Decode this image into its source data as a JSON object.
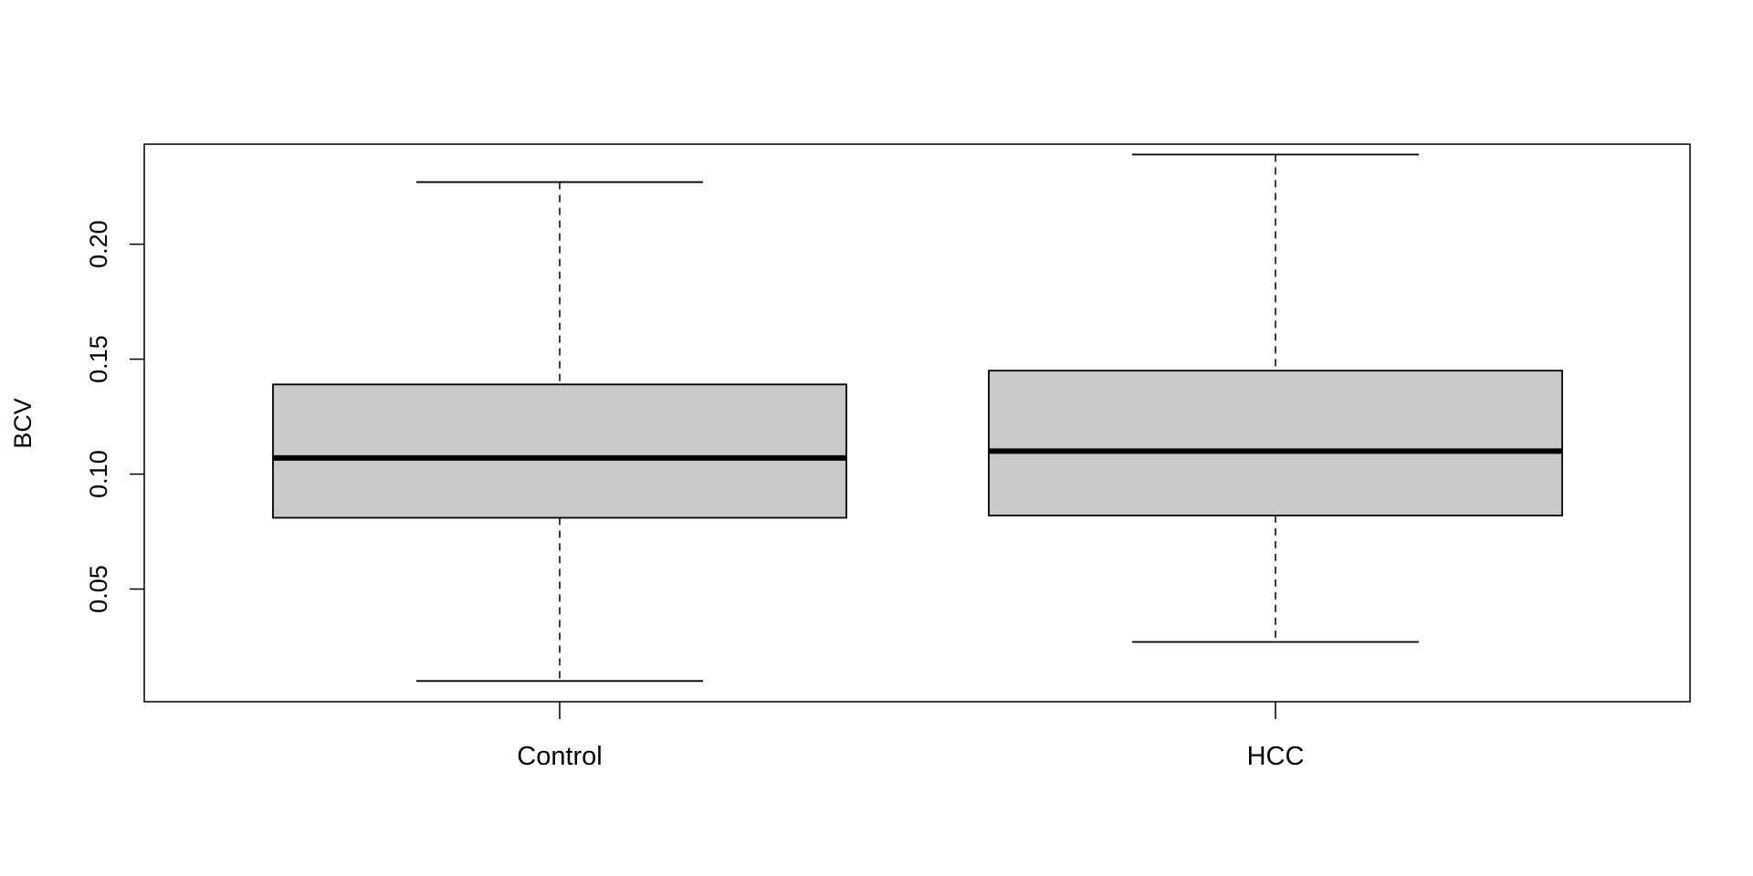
{
  "chart_data": {
    "type": "boxplot",
    "title": "",
    "xlabel": "",
    "ylabel": "BCV",
    "ylim": [
      0.0,
      0.25
    ],
    "yticks": [
      0.05,
      0.1,
      0.15,
      0.2
    ],
    "ytick_labels": [
      "0.05",
      "0.10",
      "0.15",
      "0.20"
    ],
    "grid": false,
    "box_fill": "#c9c9c9",
    "line_color": "#000000",
    "categories": [
      "Control",
      "HCC"
    ],
    "boxes": [
      {
        "category": "Control",
        "whisker_low": 0.01,
        "q1": 0.081,
        "median": 0.107,
        "q3": 0.139,
        "whisker_high": 0.227
      },
      {
        "category": "HCC",
        "whisker_low": 0.027,
        "q1": 0.082,
        "median": 0.11,
        "q3": 0.145,
        "whisker_high": 0.239
      }
    ]
  }
}
